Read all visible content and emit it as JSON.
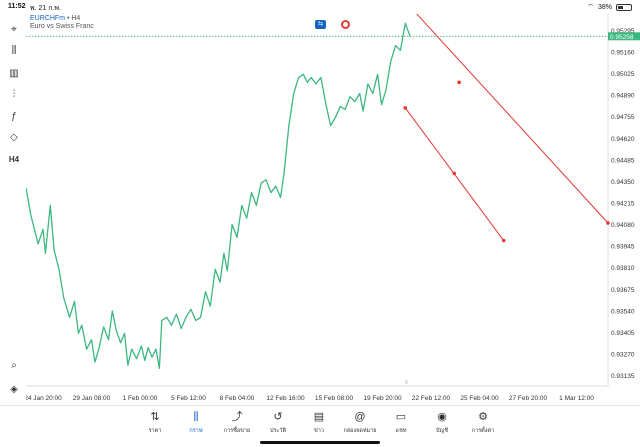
{
  "status": {
    "time": "11:52",
    "date": "พ. 21 ก.พ.",
    "battery": "38%",
    "battery_level": 0.38
  },
  "chart_header": {
    "symbol": "EURCHFm",
    "separator": " • ",
    "timeframe": "H4",
    "description": "Euro vs Swiss Franc"
  },
  "toolbar": [
    {
      "name": "crosshair-icon",
      "glyph": "⌖"
    },
    {
      "name": "candle-type-icon",
      "glyph": "⫼"
    },
    {
      "name": "bar-chart-icon",
      "glyph": "▥"
    },
    {
      "name": "indicators-icon",
      "glyph": "⫶"
    },
    {
      "name": "function-icon",
      "glyph": "ƒ"
    },
    {
      "name": "shapes-icon",
      "glyph": "◇"
    },
    {
      "name": "timeframe-label",
      "glyph": "H4"
    }
  ],
  "tabs": [
    {
      "label": "ราคา",
      "glyph": "⇅",
      "active": false
    },
    {
      "label": "กราฟ",
      "glyph": "⫼",
      "active": true
    },
    {
      "label": "การซื้อขาย",
      "glyph": "⤴",
      "active": false
    },
    {
      "label": "ประวัติ",
      "glyph": "↺",
      "active": false
    },
    {
      "label": "ข่าว",
      "glyph": "▤",
      "active": false
    },
    {
      "label": "กล่องจดหมาย",
      "glyph": "@",
      "active": false
    },
    {
      "label": "แชท",
      "glyph": "▭",
      "active": false
    },
    {
      "label": "บัญชี",
      "glyph": "◉",
      "active": false
    },
    {
      "label": "การตั้งค่า",
      "glyph": "⚙",
      "active": false
    }
  ],
  "colors": {
    "line": "#3cb77f",
    "trend": "#e53935",
    "grid": "#eeeeee",
    "price_line": "#3cb77f",
    "current_bg": "#3cb77f",
    "accent": "#1565c0"
  },
  "chart_data": {
    "type": "line",
    "x_ticks": [
      "24 Jan 20:00",
      "29 Jan 08:00",
      "1 Feb 00:00",
      "5 Feb 12:00",
      "8 Feb 04:00",
      "12 Feb 16:00",
      "15 Feb 08:00",
      "19 Feb 20:00",
      "22 Feb 12:00",
      "25 Feb 04:00",
      "27 Feb 20:00",
      "1 Mar 12:00"
    ],
    "y_ticks": [
      0.95295,
      0.9516,
      0.95025,
      0.9489,
      0.94755,
      0.9462,
      0.94485,
      0.9435,
      0.94215,
      0.9408,
      0.93945,
      0.9381,
      0.93675,
      0.9354,
      0.93405,
      0.9327,
      0.93135
    ],
    "current_price": "0.95258",
    "ylim": [
      0.9307,
      0.9536
    ],
    "xlim": [
      0,
      12
    ],
    "series": [
      {
        "values": [
          [
            0.0,
            0.9431
          ],
          [
            0.1,
            0.9414
          ],
          [
            0.25,
            0.9396
          ],
          [
            0.35,
            0.9405
          ],
          [
            0.4,
            0.939
          ],
          [
            0.5,
            0.942
          ],
          [
            0.58,
            0.9392
          ],
          [
            0.68,
            0.938
          ],
          [
            0.78,
            0.9362
          ],
          [
            0.9,
            0.935
          ],
          [
            1.0,
            0.936
          ],
          [
            1.08,
            0.934
          ],
          [
            1.15,
            0.9345
          ],
          [
            1.25,
            0.933
          ],
          [
            1.35,
            0.9336
          ],
          [
            1.42,
            0.9322
          ],
          [
            1.5,
            0.933
          ],
          [
            1.6,
            0.9344
          ],
          [
            1.7,
            0.9336
          ],
          [
            1.78,
            0.9354
          ],
          [
            1.86,
            0.9342
          ],
          [
            1.95,
            0.9334
          ],
          [
            2.03,
            0.934
          ],
          [
            2.1,
            0.932
          ],
          [
            2.18,
            0.933
          ],
          [
            2.28,
            0.9324
          ],
          [
            2.38,
            0.9332
          ],
          [
            2.45,
            0.9323
          ],
          [
            2.52,
            0.9331
          ],
          [
            2.6,
            0.9325
          ],
          [
            2.68,
            0.933
          ],
          [
            2.75,
            0.9318
          ],
          [
            2.8,
            0.9348
          ],
          [
            2.9,
            0.935
          ],
          [
            3.0,
            0.9345
          ],
          [
            3.1,
            0.9352
          ],
          [
            3.2,
            0.9343
          ],
          [
            3.3,
            0.935
          ],
          [
            3.4,
            0.9355
          ],
          [
            3.5,
            0.9348
          ],
          [
            3.6,
            0.935
          ],
          [
            3.7,
            0.9366
          ],
          [
            3.8,
            0.9357
          ],
          [
            3.9,
            0.938
          ],
          [
            4.0,
            0.9372
          ],
          [
            4.08,
            0.939
          ],
          [
            4.15,
            0.9379
          ],
          [
            4.25,
            0.9408
          ],
          [
            4.35,
            0.94
          ],
          [
            4.45,
            0.942
          ],
          [
            4.55,
            0.9412
          ],
          [
            4.65,
            0.9428
          ],
          [
            4.75,
            0.942
          ],
          [
            4.85,
            0.9434
          ],
          [
            4.95,
            0.9436
          ],
          [
            5.05,
            0.9428
          ],
          [
            5.15,
            0.9432
          ],
          [
            5.25,
            0.9425
          ],
          [
            5.32,
            0.944
          ],
          [
            5.42,
            0.947
          ],
          [
            5.52,
            0.949
          ],
          [
            5.62,
            0.95
          ],
          [
            5.72,
            0.9502
          ],
          [
            5.8,
            0.9497
          ],
          [
            5.88,
            0.95
          ],
          [
            5.98,
            0.9496
          ],
          [
            6.08,
            0.95
          ],
          [
            6.18,
            0.9484
          ],
          [
            6.28,
            0.947
          ],
          [
            6.38,
            0.9475
          ],
          [
            6.48,
            0.9482
          ],
          [
            6.58,
            0.948
          ],
          [
            6.68,
            0.9488
          ],
          [
            6.78,
            0.9485
          ],
          [
            6.88,
            0.949
          ],
          [
            6.95,
            0.9479
          ],
          [
            7.05,
            0.9496
          ],
          [
            7.15,
            0.949
          ],
          [
            7.25,
            0.9502
          ],
          [
            7.33,
            0.9483
          ],
          [
            7.42,
            0.9492
          ],
          [
            7.52,
            0.951
          ],
          [
            7.62,
            0.952
          ],
          [
            7.72,
            0.9517
          ],
          [
            7.82,
            0.9534
          ],
          [
            7.92,
            0.95258
          ]
        ]
      }
    ],
    "trendlines": [
      {
        "x1": 7.96,
        "y1": 0.9543,
        "x2": 12.0,
        "y2": 0.9409,
        "color": "#e53935",
        "mid": [
          8.93,
          0.9497
        ]
      },
      {
        "x1": 7.82,
        "y1": 0.9481,
        "x2": 9.85,
        "y2": 0.9398,
        "color": "#e53935",
        "mid": [
          8.83,
          0.944
        ]
      }
    ],
    "xlabel": "",
    "ylabel": ""
  }
}
